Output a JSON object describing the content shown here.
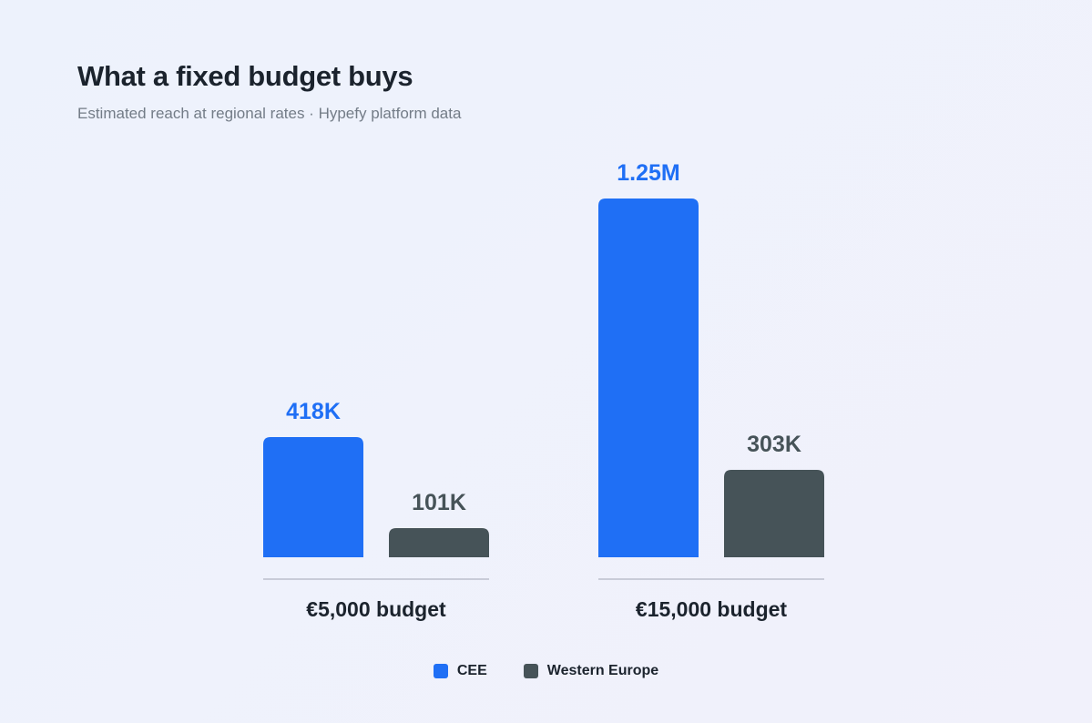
{
  "chart_data": {
    "type": "bar",
    "title": "What a fixed budget buys",
    "subtitle": "Estimated reach at regional rates · Hypefy platform data",
    "categories": [
      "€5,000 budget",
      "€15,000 budget"
    ],
    "series": [
      {
        "name": "CEE",
        "color": "#1f6ff5",
        "values": [
          418000,
          1250000
        ],
        "labels": [
          "418K",
          "1.25M"
        ]
      },
      {
        "name": "Western Europe",
        "color": "#465358",
        "values": [
          101000,
          303000
        ],
        "labels": [
          "101K",
          "303K"
        ]
      }
    ],
    "ylim": [
      0,
      1250000
    ],
    "grid": false,
    "legend": "bottom-center"
  }
}
